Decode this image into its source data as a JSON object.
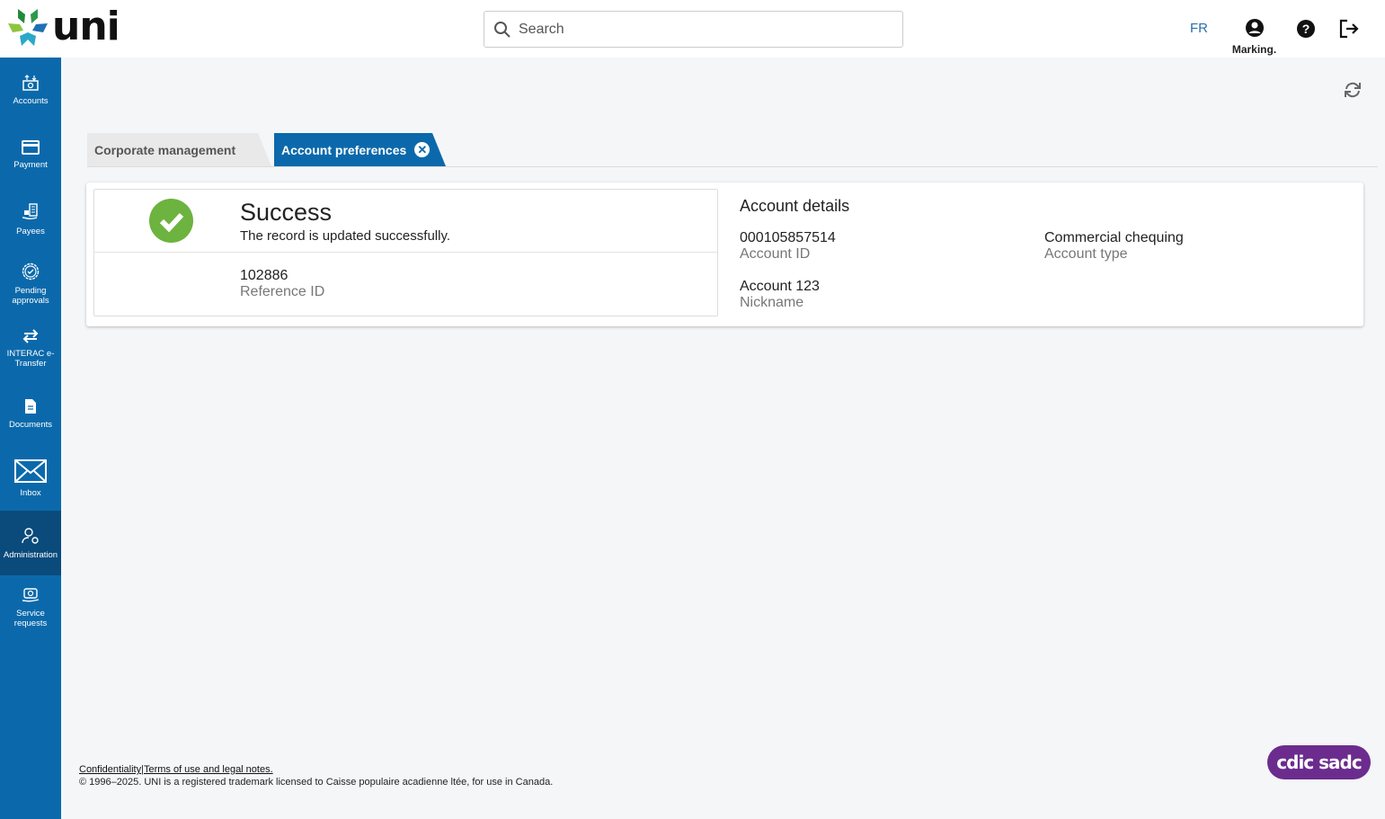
{
  "header": {
    "logo": "uni",
    "search_placeholder": "Search",
    "language": "FR",
    "user_name": "Marking."
  },
  "sidebar": {
    "items": [
      {
        "label": "Accounts"
      },
      {
        "label": "Payment"
      },
      {
        "label": "Payees"
      },
      {
        "label": "Pending approvals"
      },
      {
        "label": "INTERAC e-Transfer"
      },
      {
        "label": "Documents"
      },
      {
        "label": "Inbox"
      },
      {
        "label": "Administration",
        "active": true
      },
      {
        "label": "Service requests"
      }
    ]
  },
  "tabs": [
    {
      "label": "Corporate management"
    },
    {
      "label": "Account preferences",
      "active": true
    }
  ],
  "receipt": {
    "title": "Success",
    "message": "The record is updated successfully.",
    "reference_value": "102886",
    "reference_label": "Reference ID"
  },
  "details": {
    "title": "Account details",
    "fields": [
      {
        "value": "000105857514",
        "label": "Account ID"
      },
      {
        "value": "Commercial chequing",
        "label": "Account type"
      },
      {
        "value": "Account 123",
        "label": "Nickname"
      }
    ]
  },
  "footer": {
    "confidentiality": "Confidentiality",
    "separator": "|",
    "terms": "Terms of use and legal notes.",
    "copyright": "© 1996–2025. UNI is a registered trademark licensed to Caisse populaire acadienne ltée, for use in Canada."
  },
  "badge": {
    "text": "cdic sadc",
    "color": "#6b2c8e"
  },
  "colors": {
    "primary": "#0b69ab",
    "success": "#6db33f"
  }
}
